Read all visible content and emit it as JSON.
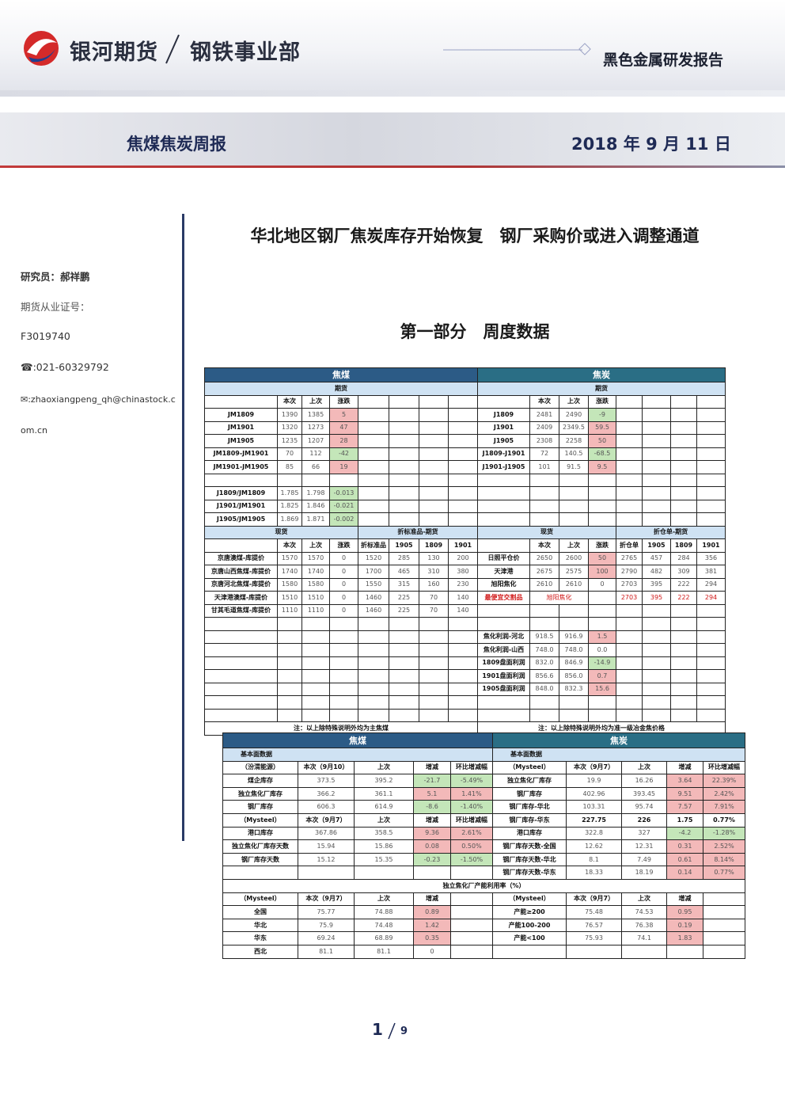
{
  "header": {
    "logo": "银河期货",
    "department": "钢铁事业部",
    "series": "黑色金属研发报告"
  },
  "banner": {
    "report": "焦煤焦炭周报",
    "date": "2018 年 9 月 11 日"
  },
  "sidebar": {
    "analyst": "研究员：郝祥鹏",
    "license_label": "期货从业证号：",
    "license": "F3019740",
    "phone": "☎:021-60329792",
    "email": "✉:zhaoxiangpeng_qh@chinastock.com.cn"
  },
  "title": "华北地区钢厂焦炭库存开始恢复　钢厂采购价或进入调整通道",
  "section": "第一部分　周度数据",
  "table1": {
    "rows": [
      [
        "焦煤",
        null,
        null,
        null,
        null,
        null,
        null,
        null,
        "焦炭",
        null,
        null,
        null,
        null,
        null,
        null,
        null
      ],
      [
        "期货",
        null,
        null,
        null,
        null,
        null,
        null,
        null,
        "期货",
        null,
        null,
        null,
        null,
        null,
        null,
        null
      ],
      [
        null,
        "本次",
        "上次",
        "涨跌",
        null,
        null,
        null,
        null,
        null,
        "本次",
        "上次",
        "涨跌",
        null,
        null,
        null,
        null
      ],
      [
        "JM1809",
        "1390",
        "1385",
        "5",
        null,
        null,
        null,
        null,
        "J1809",
        "2481",
        "2490",
        "-9",
        null,
        null,
        null,
        null
      ],
      [
        "JM1901",
        "1320",
        "1273",
        "47",
        null,
        null,
        null,
        null,
        "J1901",
        "2409",
        "2349.5",
        "59.5",
        null,
        null,
        null,
        null
      ],
      [
        "JM1905",
        "1235",
        "1207",
        "28",
        null,
        null,
        null,
        null,
        "J1905",
        "2308",
        "2258",
        "50",
        null,
        null,
        null,
        null
      ],
      [
        "JM1809-JM1901",
        "70",
        "112",
        "-42",
        null,
        null,
        null,
        null,
        "J1809-J1901",
        "72",
        "140.5",
        "-68.5",
        null,
        null,
        null,
        null
      ],
      [
        "JM1901-JM1905",
        "85",
        "66",
        "19",
        null,
        null,
        null,
        null,
        "J1901-J1905",
        "101",
        "91.5",
        "9.5",
        null,
        null,
        null,
        null
      ],
      [
        null,
        null,
        null,
        null,
        null,
        null,
        null,
        null,
        null,
        null,
        null,
        null,
        null,
        null,
        null,
        null
      ],
      [
        "J1809/JM1809",
        "1.785",
        "1.798",
        "-0.013",
        null,
        null,
        null,
        null,
        null,
        null,
        null,
        null,
        null,
        null,
        null,
        null
      ],
      [
        "J1901/JM1901",
        "1.825",
        "1.846",
        "-0.021",
        null,
        null,
        null,
        null,
        null,
        null,
        null,
        null,
        null,
        null,
        null,
        null
      ],
      [
        "J1905/JM1905",
        "1.869",
        "1.871",
        "-0.002",
        null,
        null,
        null,
        null,
        null,
        null,
        null,
        null,
        null,
        null,
        null,
        null
      ],
      [
        "现货",
        null,
        null,
        null,
        "折标准品-期货",
        null,
        null,
        null,
        "现货",
        null,
        null,
        null,
        "折仓单-期货",
        null,
        null,
        null
      ],
      [
        null,
        "本次",
        "上次",
        "涨跌",
        "折标准品",
        "1905",
        "1809",
        "1901",
        null,
        "本次",
        "上次",
        "涨跌",
        "折仓单",
        "1905",
        "1809",
        "1901"
      ],
      [
        "京唐澳煤-库提价",
        "1570",
        "1570",
        "0",
        "1520",
        "285",
        "130",
        "200",
        "日照平仓价",
        "2650",
        "2600",
        "50",
        "2765",
        "457",
        "284",
        "356"
      ],
      [
        "京唐山西焦煤-库提价",
        "1740",
        "1740",
        "0",
        "1700",
        "465",
        "310",
        "380",
        "天津港",
        "2675",
        "2575",
        "100",
        "2790",
        "482",
        "309",
        "381"
      ],
      [
        "京唐河北焦煤-库提价",
        "1580",
        "1580",
        "0",
        "1550",
        "315",
        "160",
        "230",
        "旭阳焦化",
        "2610",
        "2610",
        "0",
        "2703",
        "395",
        "222",
        "294"
      ],
      [
        "天津港澳煤-库提价",
        "1510",
        "1510",
        "0",
        "1460",
        "225",
        "70",
        "140",
        "最便宜交割品",
        "旭阳焦化",
        null,
        null,
        "2703",
        "395",
        "222",
        "294"
      ],
      [
        "甘其毛道焦煤-库提价",
        "1110",
        "1110",
        "0",
        "1460",
        "225",
        "70",
        "140",
        null,
        null,
        null,
        null,
        null,
        null,
        null,
        null
      ],
      [
        null,
        null,
        null,
        null,
        null,
        null,
        null,
        null,
        null,
        null,
        null,
        null,
        null,
        null,
        null,
        null
      ],
      [
        null,
        null,
        null,
        null,
        null,
        null,
        null,
        null,
        "焦化利润-河北",
        "918.5",
        "916.9",
        "1.5",
        null,
        null,
        null,
        null
      ],
      [
        null,
        null,
        null,
        null,
        null,
        null,
        null,
        null,
        "焦化利润-山西",
        "748.0",
        "748.0",
        "0.0",
        null,
        null,
        null,
        null
      ],
      [
        null,
        null,
        null,
        null,
        null,
        null,
        null,
        null,
        "1809盘面利润",
        "832.0",
        "846.9",
        "-14.9",
        null,
        null,
        null,
        null
      ],
      [
        null,
        null,
        null,
        null,
        null,
        null,
        null,
        null,
        "1901盘面利润",
        "856.6",
        "856.0",
        "0.7",
        null,
        null,
        null,
        null
      ],
      [
        null,
        null,
        null,
        null,
        null,
        null,
        null,
        null,
        "1905盘面利润",
        "848.0",
        "832.3",
        "15.6",
        null,
        null,
        null,
        null
      ],
      [
        null,
        null,
        null,
        null,
        null,
        null,
        null,
        null,
        null,
        null,
        null,
        null,
        null,
        null,
        null,
        null
      ],
      [
        null,
        null,
        null,
        null,
        null,
        null,
        null,
        null,
        null,
        null,
        null,
        null,
        null,
        null,
        null,
        null
      ],
      [
        "注：以上除特殊说明外均为主焦煤",
        null,
        null,
        null,
        null,
        null,
        null,
        null,
        "注：以上除特殊说明外均为准一级冶金焦价格",
        null,
        null,
        null,
        null,
        null,
        null,
        null
      ]
    ]
  },
  "table2": {
    "rows": [
      [
        "焦煤",
        null,
        null,
        null,
        null,
        "焦炭",
        null,
        null,
        null,
        null
      ],
      [
        "基本面数据",
        null,
        null,
        null,
        null,
        "基本面数据",
        null,
        null,
        null,
        null
      ],
      [
        "（汾渭能源）",
        "本次（9月10）",
        "上次",
        "增减",
        "环比增减幅",
        "（Mysteel）",
        "本次（9月7）",
        "上次",
        "增减",
        "环比增减幅"
      ],
      [
        "煤企库存",
        "373.5",
        "395.2",
        "-21.7",
        "-5.49%",
        "独立焦化厂库存",
        "19.9",
        "16.26",
        "3.64",
        "22.39%"
      ],
      [
        "独立焦化厂库存",
        "366.2",
        "361.1",
        "5.1",
        "1.41%",
        "钢厂库存",
        "402.96",
        "393.45",
        "9.51",
        "2.42%"
      ],
      [
        "钢厂库存",
        "606.3",
        "614.9",
        "-8.6",
        "-1.40%",
        "钢厂库存-华北",
        "103.31",
        "95.74",
        "7.57",
        "7.91%"
      ],
      [
        "（Mysteel）",
        "本次（9月7）",
        "上次",
        "增减",
        "环比增减幅",
        "钢厂库存-华东",
        "227.75",
        "226",
        "1.75",
        "0.77%"
      ],
      [
        "港口库存",
        "367.86",
        "358.5",
        "9.36",
        "2.61%",
        "港口库存",
        "322.8",
        "327",
        "-4.2",
        "-1.28%"
      ],
      [
        "独立焦化厂库存天数",
        "15.94",
        "15.86",
        "0.08",
        "0.50%",
        "钢厂库存天数-全国",
        "12.62",
        "12.31",
        "0.31",
        "2.52%"
      ],
      [
        "钢厂库存天数",
        "15.12",
        "15.35",
        "-0.23",
        "-1.50%",
        "钢厂库存天数-华北",
        "8.1",
        "7.49",
        "0.61",
        "8.14%"
      ],
      [
        null,
        null,
        null,
        null,
        null,
        "钢厂库存天数-华东",
        "18.33",
        "18.19",
        "0.14",
        "0.77%"
      ],
      [
        "独立焦化厂产能利用率（%）",
        null,
        null,
        null,
        null,
        null,
        null,
        null,
        null,
        null
      ],
      [
        "（Mysteel）",
        "本次（9月7）",
        "上次",
        "增减",
        null,
        "（Mysteel）",
        "本次（9月7）",
        "上次",
        "增减",
        null
      ],
      [
        "全国",
        "75.77",
        "74.88",
        "0.89",
        null,
        "产能≥200",
        "75.48",
        "74.53",
        "0.95",
        null
      ],
      [
        "华北",
        "75.9",
        "74.48",
        "1.42",
        null,
        "产能100-200",
        "76.57",
        "76.38",
        "0.19",
        null
      ],
      [
        "华东",
        "69.24",
        "68.89",
        "0.35",
        null,
        "产能<100",
        "75.93",
        "74.1",
        "1.83",
        null
      ],
      [
        "西北",
        "81.1",
        "81.1",
        "0",
        null,
        null,
        null,
        null,
        null,
        null
      ]
    ]
  },
  "page": {
    "current": "1",
    "total": "9"
  }
}
